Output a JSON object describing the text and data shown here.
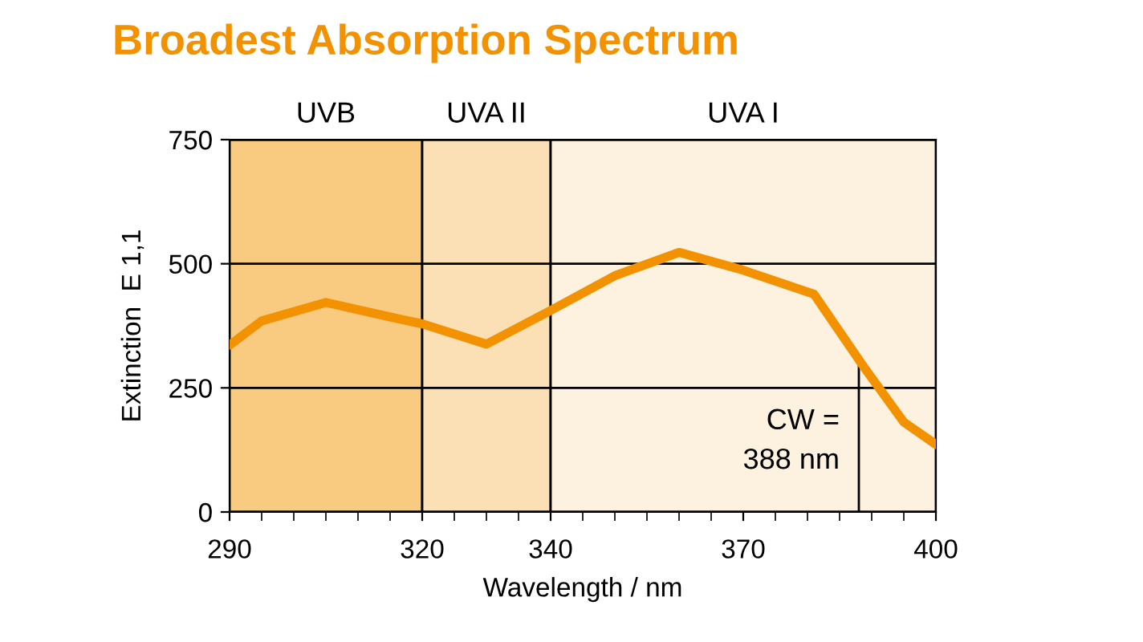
{
  "chart_data": {
    "type": "line",
    "title": "Broadest Absorption Spectrum",
    "xlabel": "Wavelength / nm",
    "ylabel": "Extinction  E 1,1",
    "x": [
      290,
      295,
      305,
      316,
      320,
      330,
      340,
      350,
      360,
      370,
      381,
      389,
      395,
      400
    ],
    "series": [
      {
        "color": "#f39200",
        "values": [
          336,
          385,
          422,
          390,
          379,
          338,
          406,
          476,
          523,
          487,
          439,
          288,
          181,
          136
        ]
      }
    ],
    "xlim": [
      290,
      400
    ],
    "xticks": [
      290,
      320,
      340,
      370,
      400
    ],
    "ylim": [
      0,
      750
    ],
    "yticks": [
      0,
      250,
      500,
      750
    ],
    "grid": "y",
    "bands": [
      {
        "axis": "x",
        "from": 290,
        "to": 320,
        "label": "UVB",
        "color": "#f9cb80"
      },
      {
        "axis": "x",
        "from": 320,
        "to": 340,
        "label": "UVA II",
        "color": "#fbe0b6"
      },
      {
        "axis": "x",
        "from": 340,
        "to": 400,
        "label": "UVA I",
        "color": "#fdf2e0"
      }
    ],
    "ref_lines": [
      {
        "axis": "x",
        "value": 388,
        "label": "CW =\n388 nm",
        "color": "#000000"
      }
    ],
    "marker": "none",
    "line_style": "solid"
  }
}
